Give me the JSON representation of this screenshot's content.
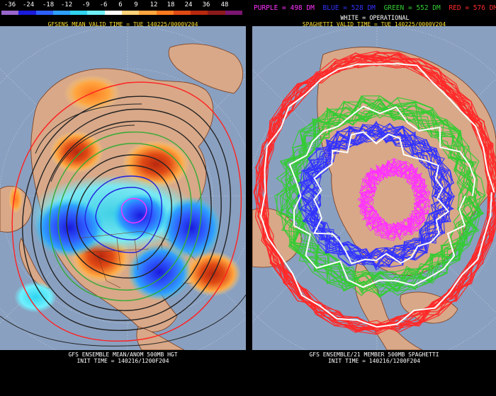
{
  "colorbar": {
    "labels": [
      "-36",
      "-24",
      "-18",
      "-12",
      "-9",
      "-6",
      "6",
      "9",
      "12",
      "18",
      "24",
      "36",
      "48"
    ],
    "colors": [
      "#9966cc",
      "#1a1adc",
      "#2e5fff",
      "#2ea0ff",
      "#30d4f0",
      "#6ff0ff",
      "#ffffff",
      "#ffd27a",
      "#ffa640",
      "#ff7a1f",
      "#e04a14",
      "#b8280f",
      "#8b1a1a",
      "#7a1670"
    ]
  },
  "left_panel": {
    "title": "GFSENS MEAN VALID TIME = TUE 140225/0000V204",
    "footer_line1": "GFS ENSEMBLE MEAN/ANOM 500MB HGT",
    "footer_line2": "INIT TIME = 140216/1200F204"
  },
  "right_panel": {
    "legend": [
      {
        "text": "PURPLE = 498 DM",
        "color": "#ff33ff"
      },
      {
        "text": "BLUE = 528 DM",
        "color": "#3333ff"
      },
      {
        "text": "GREEN = 552 DM",
        "color": "#33cc33"
      },
      {
        "text": "RED = 576 DM",
        "color": "#ff2a2a"
      }
    ],
    "operational_label": "WHITE = OPERATIONAL",
    "title": "SPAGHETTI VALID TIME = TUE 140225/0000V204",
    "footer_line1": "GFS ENSEMBLE/21 MEMBER 500MB SPAGHETTI",
    "footer_line2": "INIT TIME = 140216/1200F204"
  },
  "map_colors": {
    "ocean": "#8aa0c0",
    "land": "#d8a888",
    "border": "#7a3a1a",
    "gridline": "#b8c8dd"
  }
}
